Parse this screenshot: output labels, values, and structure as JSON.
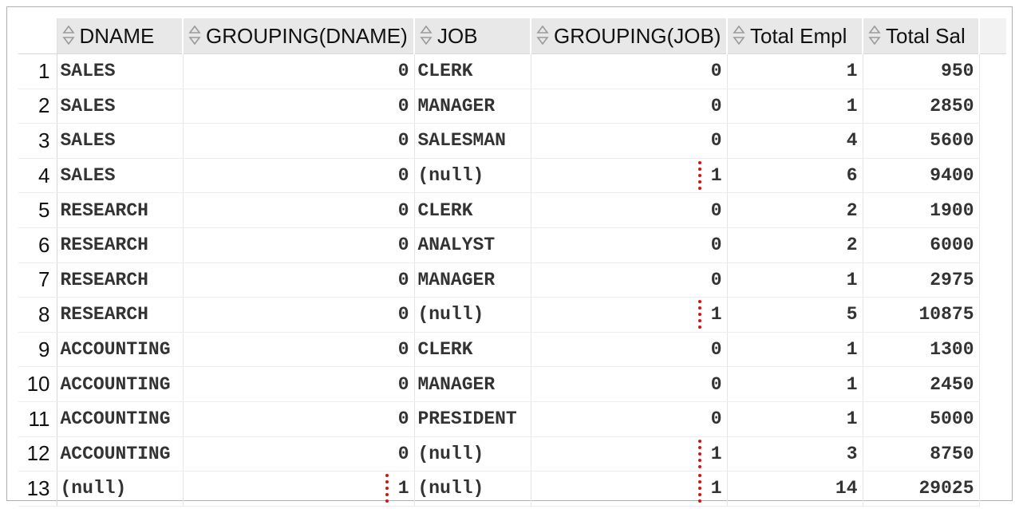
{
  "columns": [
    "DNAME",
    "GROUPING(DNAME)",
    "JOB",
    "GROUPING(JOB)",
    "Total Empl",
    "Total Sal"
  ],
  "rows": [
    {
      "n": "1",
      "dname": "SALES",
      "gdname": "0",
      "job": "CLERK",
      "gjob": "0",
      "empl": "1",
      "sal": "950"
    },
    {
      "n": "2",
      "dname": "SALES",
      "gdname": "0",
      "job": "MANAGER",
      "gjob": "0",
      "empl": "1",
      "sal": "2850"
    },
    {
      "n": "3",
      "dname": "SALES",
      "gdname": "0",
      "job": "SALESMAN",
      "gjob": "0",
      "empl": "4",
      "sal": "5600"
    },
    {
      "n": "4",
      "dname": "SALES",
      "gdname": "0",
      "job": "(null)",
      "gjob": "1",
      "empl": "6",
      "sal": "9400"
    },
    {
      "n": "5",
      "dname": "RESEARCH",
      "gdname": "0",
      "job": "CLERK",
      "gjob": "0",
      "empl": "2",
      "sal": "1900"
    },
    {
      "n": "6",
      "dname": "RESEARCH",
      "gdname": "0",
      "job": "ANALYST",
      "gjob": "0",
      "empl": "2",
      "sal": "6000"
    },
    {
      "n": "7",
      "dname": "RESEARCH",
      "gdname": "0",
      "job": "MANAGER",
      "gjob": "0",
      "empl": "1",
      "sal": "2975"
    },
    {
      "n": "8",
      "dname": "RESEARCH",
      "gdname": "0",
      "job": "(null)",
      "gjob": "1",
      "empl": "5",
      "sal": "10875"
    },
    {
      "n": "9",
      "dname": "ACCOUNTING",
      "gdname": "0",
      "job": "CLERK",
      "gjob": "0",
      "empl": "1",
      "sal": "1300"
    },
    {
      "n": "10",
      "dname": "ACCOUNTING",
      "gdname": "0",
      "job": "MANAGER",
      "gjob": "0",
      "empl": "1",
      "sal": "2450"
    },
    {
      "n": "11",
      "dname": "ACCOUNTING",
      "gdname": "0",
      "job": "PRESIDENT",
      "gjob": "0",
      "empl": "1",
      "sal": "5000"
    },
    {
      "n": "12",
      "dname": "ACCOUNTING",
      "gdname": "0",
      "job": "(null)",
      "gjob": "1",
      "empl": "3",
      "sal": "8750"
    },
    {
      "n": "13",
      "dname": "(null)",
      "gdname": "1",
      "job": "(null)",
      "gjob": "1",
      "empl": "14",
      "sal": "29025"
    }
  ],
  "highlight_color": "#e01010",
  "sort_icon": "sort-updown-icon"
}
